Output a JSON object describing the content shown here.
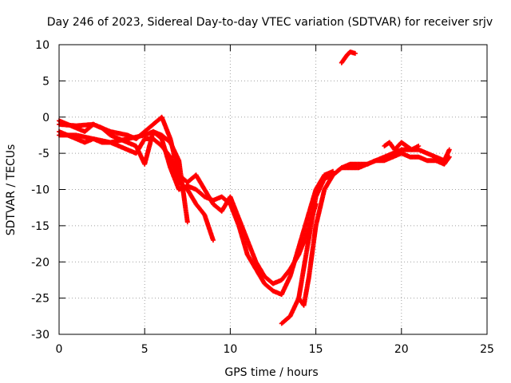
{
  "chart_data": {
    "type": "scatter",
    "title": "Day 246 of 2023, Sidereal Day-to-day VTEC variation (SDTVAR) for receiver srjv",
    "xlabel": "GPS time / hours",
    "ylabel": "SDTVAR / TECUs",
    "xlim": [
      0,
      25
    ],
    "ylim": [
      -30,
      10
    ],
    "xticks": [
      0,
      5,
      10,
      15,
      20,
      25
    ],
    "yticks": [
      10,
      5,
      0,
      -5,
      -10,
      -15,
      -20,
      -25,
      -30
    ],
    "grid": true,
    "legend": "none",
    "marker": "+",
    "series_color": "#ff0000",
    "series": [
      {
        "name": "track-1",
        "x": [
          0.0,
          1.0,
          2.0,
          3.0,
          4.0,
          4.5,
          5.0,
          5.5,
          6.0,
          6.5,
          7.0,
          7.5,
          8.0,
          8.5,
          9.0,
          9.5,
          10.0,
          10.5,
          11.0,
          11.5,
          12.0,
          12.5,
          13.0,
          13.5,
          14.0,
          14.5,
          15.0
        ],
        "y": [
          -1.0,
          -1.2,
          -1.0,
          -2.0,
          -2.5,
          -3.0,
          -2.0,
          -1.0,
          0.0,
          -3.0,
          -8.0,
          -9.0,
          -8.0,
          -10.0,
          -12.0,
          -13.0,
          -11.0,
          -14.0,
          -17.0,
          -20.0,
          -22.0,
          -23.0,
          -22.5,
          -21.0,
          -19.0,
          -16.0,
          -12.0
        ]
      },
      {
        "name": "track-2",
        "x": [
          0.0,
          0.5,
          1.0,
          1.5,
          2.0,
          2.5,
          3.0,
          3.5,
          4.0,
          4.5,
          5.0,
          5.5,
          6.0,
          6.5,
          7.0,
          7.5,
          8.0,
          8.5,
          9.0
        ],
        "y": [
          -2.0,
          -2.5,
          -3.0,
          -3.5,
          -3.0,
          -3.5,
          -3.5,
          -4.0,
          -4.5,
          -5.0,
          -3.0,
          -3.0,
          -4.0,
          -5.5,
          -9.0,
          -10.0,
          -12.0,
          -13.5,
          -17.0
        ]
      },
      {
        "name": "track-3",
        "x": [
          0.0,
          0.5,
          1.0,
          1.5,
          2.0,
          2.5,
          3.0,
          3.5,
          4.0,
          4.5,
          5.0,
          5.5,
          6.0,
          6.5,
          7.0,
          7.5
        ],
        "y": [
          -0.5,
          -1.0,
          -1.5,
          -2.0,
          -1.0,
          -1.5,
          -2.5,
          -3.0,
          -3.5,
          -4.0,
          -6.5,
          -2.0,
          -2.5,
          -3.5,
          -6.0,
          -14.5
        ]
      },
      {
        "name": "track-4",
        "x": [
          0.0,
          1.0,
          2.0,
          3.0,
          4.0,
          5.0,
          5.5,
          6.0,
          6.5,
          7.0,
          7.5,
          8.0,
          8.5,
          9.0,
          9.5,
          10.0,
          10.5,
          11.0,
          11.5,
          12.0,
          12.5,
          13.0,
          13.5,
          14.0,
          14.5,
          15.0,
          15.5,
          16.0
        ],
        "y": [
          -2.5,
          -2.5,
          -3.0,
          -3.5,
          -3.0,
          -2.5,
          -2.0,
          -3.0,
          -7.0,
          -10.0,
          -9.5,
          -10.0,
          -11.0,
          -11.5,
          -11.0,
          -12.0,
          -15.0,
          -19.0,
          -21.0,
          -23.0,
          -24.0,
          -24.5,
          -22.0,
          -18.0,
          -14.0,
          -10.0,
          -8.0,
          -7.5
        ]
      },
      {
        "name": "track-5",
        "x": [
          13.0,
          13.5,
          14.0,
          14.5,
          15.0,
          15.5,
          16.0,
          16.5,
          17.0,
          17.5,
          18.0,
          18.5,
          19.0,
          19.5,
          20.0,
          20.5,
          21.0,
          21.5,
          22.0,
          22.5,
          22.8
        ],
        "y": [
          -28.5,
          -27.5,
          -25.0,
          -18.0,
          -11.0,
          -8.5,
          -8.0,
          -7.0,
          -6.5,
          -6.5,
          -6.5,
          -6.0,
          -5.5,
          -5.0,
          -4.5,
          -4.5,
          -4.5,
          -5.0,
          -5.5,
          -6.0,
          -4.5
        ]
      },
      {
        "name": "track-6",
        "x": [
          14.0,
          14.3,
          14.6,
          15.0,
          15.5,
          16.0,
          16.5,
          17.0,
          17.5,
          18.0,
          18.5,
          19.0,
          19.5,
          20.0,
          20.5,
          21.0,
          21.5,
          22.0,
          22.5,
          22.8
        ],
        "y": [
          -25.0,
          -26.0,
          -22.0,
          -15.0,
          -10.0,
          -8.0,
          -7.0,
          -7.0,
          -7.0,
          -6.5,
          -6.0,
          -6.0,
          -5.5,
          -5.0,
          -5.5,
          -5.5,
          -6.0,
          -6.0,
          -6.5,
          -5.5
        ]
      },
      {
        "name": "track-7",
        "x": [
          19.0,
          19.3,
          19.6,
          20.0,
          20.3,
          20.6,
          21.0
        ],
        "y": [
          -4.0,
          -3.5,
          -4.5,
          -3.5,
          -4.0,
          -4.5,
          -4.0
        ]
      },
      {
        "name": "track-8",
        "x": [
          16.5,
          16.8,
          17.0,
          17.3
        ],
        "y": [
          7.5,
          8.5,
          9.0,
          8.8
        ]
      }
    ]
  }
}
